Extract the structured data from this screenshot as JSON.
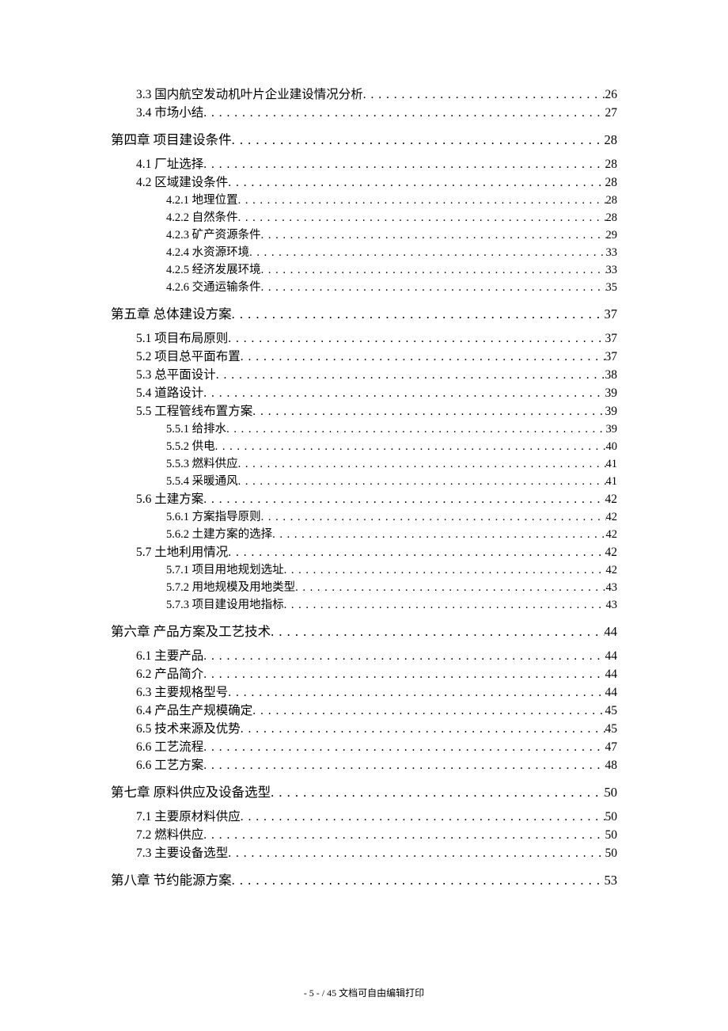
{
  "dots_fill": ". . . . . . . . . . . . . . . . . . . . . . . . . . . . . . . . . . . . . . . . . . . . . . . . . . . . . . . . . . . . . . . . . . . . . . . . . . . . . . . . . . . . . . . . . . . . . . . . . . . . . . . . . . . . . . . .",
  "footer": {
    "page_indicator": "- 5 -",
    "separator": " / ",
    "total_note": "45 文档可自由编辑打印"
  },
  "entries": [
    {
      "level": 2,
      "label": "3.3 国内航空发动机叶片企业建设情况分析",
      "page": "26"
    },
    {
      "level": 2,
      "label": "3.4 市场小结",
      "page": "27"
    },
    {
      "level": 1,
      "label": "第四章 项目建设条件",
      "page": "28"
    },
    {
      "level": 2,
      "label": "4.1 厂址选择",
      "page": "28"
    },
    {
      "level": 2,
      "label": "4.2 区域建设条件",
      "page": "28"
    },
    {
      "level": 3,
      "label": "4.2.1 地理位置",
      "page": "28"
    },
    {
      "level": 3,
      "label": "4.2.2 自然条件",
      "page": "28"
    },
    {
      "level": 3,
      "label": "4.2.3 矿产资源条件",
      "page": "29"
    },
    {
      "level": 3,
      "label": "4.2.4 水资源环境",
      "page": "33"
    },
    {
      "level": 3,
      "label": "4.2.5 经济发展环境",
      "page": "33"
    },
    {
      "level": 3,
      "label": "4.2.6 交通运输条件",
      "page": "35"
    },
    {
      "level": 1,
      "label": "第五章 总体建设方案",
      "page": "37"
    },
    {
      "level": 2,
      "label": "5.1 项目布局原则",
      "page": "37"
    },
    {
      "level": 2,
      "label": "5.2 项目总平面布置",
      "page": "37"
    },
    {
      "level": 2,
      "label": "5.3 总平面设计",
      "page": "38"
    },
    {
      "level": 2,
      "label": "5.4 道路设计",
      "page": "39"
    },
    {
      "level": 2,
      "label": "5.5 工程管线布置方案",
      "page": "39"
    },
    {
      "level": 3,
      "label": "5.5.1 给排水",
      "page": "39"
    },
    {
      "level": 3,
      "label": "5.5.2 供电",
      "page": "40"
    },
    {
      "level": 3,
      "label": "5.5.3 燃料供应",
      "page": "41"
    },
    {
      "level": 3,
      "label": "5.5.4 采暖通风",
      "page": "41"
    },
    {
      "level": 2,
      "label": "5.6 土建方案",
      "page": "42"
    },
    {
      "level": 3,
      "label": "5.6.1 方案指导原则",
      "page": "42"
    },
    {
      "level": 3,
      "label": "5.6.2 土建方案的选择",
      "page": "42"
    },
    {
      "level": 2,
      "label": "5.7 土地利用情况",
      "page": "42"
    },
    {
      "level": 3,
      "label": "5.7.1 项目用地规划选址",
      "page": "42"
    },
    {
      "level": 3,
      "label": "5.7.2 用地规模及用地类型",
      "page": "43"
    },
    {
      "level": 3,
      "label": "5.7.3 项目建设用地指标",
      "page": "43"
    },
    {
      "level": 1,
      "label": "第六章  产品方案及工艺技术",
      "page": "44"
    },
    {
      "level": 2,
      "label": "6.1 主要产品",
      "page": "44"
    },
    {
      "level": 2,
      "label": "6.2 产品简介",
      "page": "44"
    },
    {
      "level": 2,
      "label": "6.3 主要规格型号",
      "page": "44"
    },
    {
      "level": 2,
      "label": "6.4 产品生产规模确定",
      "page": "45"
    },
    {
      "level": 2,
      "label": "6.5 技术来源及优势",
      "page": "45"
    },
    {
      "level": 2,
      "label": "6.6 工艺流程",
      "page": "47"
    },
    {
      "level": 2,
      "label": "6.6 工艺方案",
      "page": "48"
    },
    {
      "level": 1,
      "label": "第七章 原料供应及设备选型",
      "page": "50"
    },
    {
      "level": 2,
      "label": "7.1 主要原材料供应",
      "page": "50"
    },
    {
      "level": 2,
      "label": "7.2 燃料供应",
      "page": "50"
    },
    {
      "level": 2,
      "label": "7.3 主要设备选型",
      "page": "50"
    },
    {
      "level": 1,
      "label": "第八章 节约能源方案",
      "page": "53"
    }
  ]
}
